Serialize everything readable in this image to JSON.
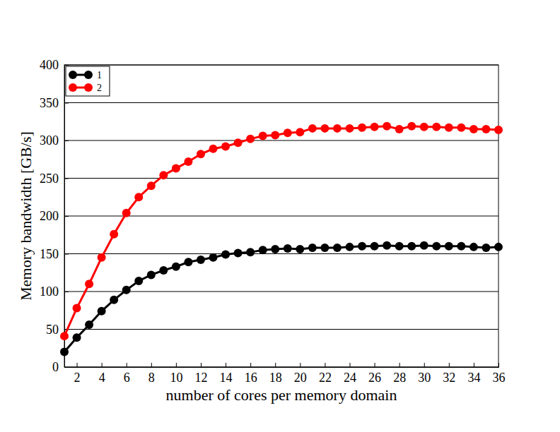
{
  "chart_data": {
    "type": "line",
    "x_label": "number of cores per memory domain",
    "y_label": "Memory bandwidth [GB/s]",
    "x": [
      1,
      2,
      3,
      4,
      5,
      6,
      7,
      8,
      9,
      10,
      11,
      12,
      13,
      14,
      15,
      16,
      17,
      18,
      19,
      20,
      21,
      22,
      23,
      24,
      25,
      26,
      27,
      28,
      29,
      30,
      31,
      32,
      33,
      34,
      35,
      36
    ],
    "series": [
      {
        "name": "1",
        "color": "#000000",
        "marker": "circle",
        "line_style": "solid",
        "values": [
          20,
          39,
          56,
          74,
          89,
          102,
          114,
          122,
          128,
          133,
          139,
          142,
          145,
          149,
          151,
          152,
          155,
          156,
          157,
          156,
          158,
          158,
          158,
          159,
          160,
          160,
          161,
          160,
          160,
          161,
          160,
          160,
          160,
          159,
          158,
          159
        ]
      },
      {
        "name": "2",
        "color": "#ff0000",
        "marker": "circle",
        "line_style": "solid",
        "values": [
          41,
          78,
          110,
          145,
          176,
          204,
          225,
          240,
          254,
          263,
          272,
          282,
          289,
          292,
          297,
          302,
          306,
          307,
          310,
          311,
          316,
          316,
          316,
          316,
          317,
          318,
          319,
          315,
          319,
          318,
          318,
          317,
          317,
          315,
          315,
          314
        ]
      }
    ],
    "xlim": [
      1,
      36
    ],
    "xticks": [
      2,
      4,
      6,
      8,
      10,
      12,
      14,
      16,
      18,
      20,
      22,
      24,
      26,
      28,
      30,
      32,
      34,
      36
    ],
    "ylim": [
      0,
      400
    ],
    "yticks": [
      0,
      50,
      100,
      150,
      200,
      250,
      300,
      350,
      400
    ],
    "grid": true,
    "legend": "upper left"
  }
}
